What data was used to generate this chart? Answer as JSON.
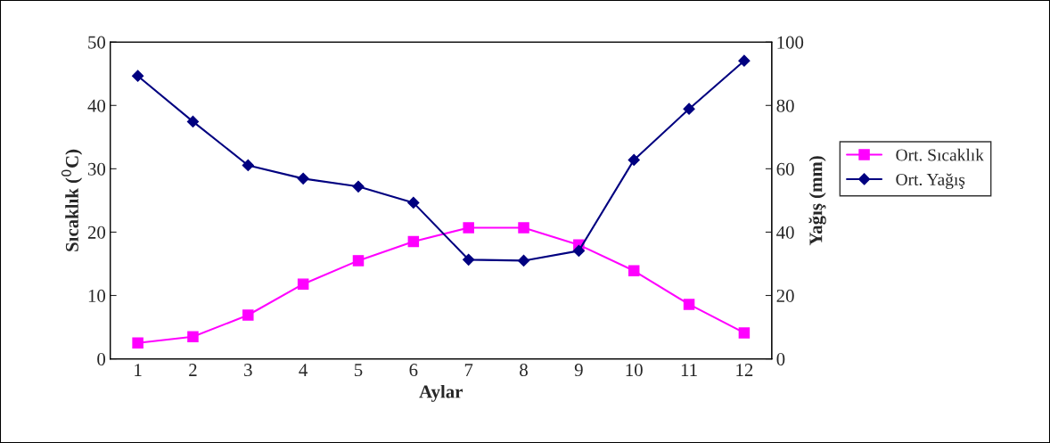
{
  "chart_data": {
    "type": "line",
    "xlabel": "Aylar",
    "ylabel": "Sıcaklık ($^{0}$C)",
    "y2label": "Yağış (mm)",
    "categories": [
      "1",
      "2",
      "3",
      "4",
      "5",
      "6",
      "7",
      "8",
      "9",
      "10",
      "11",
      "12"
    ],
    "series": [
      {
        "name": "Ort. Sıcaklık",
        "color": "#ff00ff",
        "marker": "square",
        "values": [
          2.5,
          3.5,
          6.9,
          11.8,
          15.5,
          18.5,
          20.7,
          20.7,
          18.0,
          13.9,
          8.6,
          4.1
        ]
      },
      {
        "name": "Ort. Yağış",
        "color": "#000080",
        "marker": "diamond",
        "axis": "y2",
        "values": [
          89.3,
          74.9,
          61.1,
          56.9,
          54.4,
          49.3,
          31.3,
          31.0,
          34.1,
          62.8,
          78.9,
          94.1
        ]
      }
    ],
    "ylim": [
      0,
      50
    ],
    "yticks": [
      0,
      10,
      20,
      30,
      40,
      50
    ],
    "y2lim": [
      0,
      100
    ],
    "y2ticks": [
      0,
      20,
      40,
      60,
      80,
      100
    ],
    "grid": false,
    "legend": "right"
  }
}
